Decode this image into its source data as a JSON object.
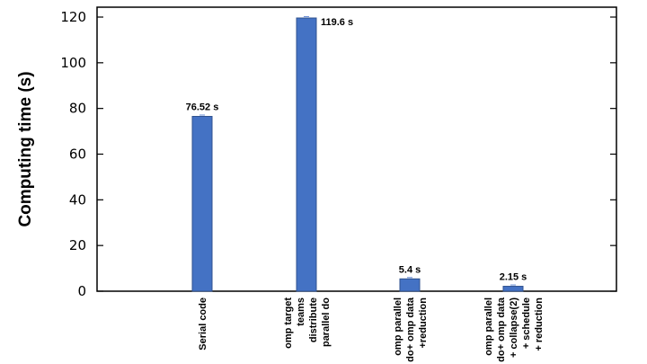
{
  "chart_data": {
    "type": "bar",
    "title": "",
    "xlabel": "",
    "ylabel": "Computing time (s)",
    "ylim": [
      0,
      120
    ],
    "yticks": [
      0,
      20,
      40,
      60,
      80,
      100,
      120
    ],
    "grid": false,
    "bar_color": "#4472c4",
    "categories": [
      [
        "Serial code"
      ],
      [
        "omp target",
        "teams",
        "distribute",
        "parallel do"
      ],
      [
        "omp parallel",
        "do+ omp data",
        "+reduction"
      ],
      [
        "omp parallel",
        "do+ omp data",
        "+ collapse(2)",
        "+ schedule",
        "+ reduction"
      ]
    ],
    "values": [
      76.52,
      119.6,
      5.4,
      2.15
    ],
    "data_labels": [
      "76.52 s",
      "119.6 s",
      "5.4 s",
      "2.15 s"
    ]
  }
}
